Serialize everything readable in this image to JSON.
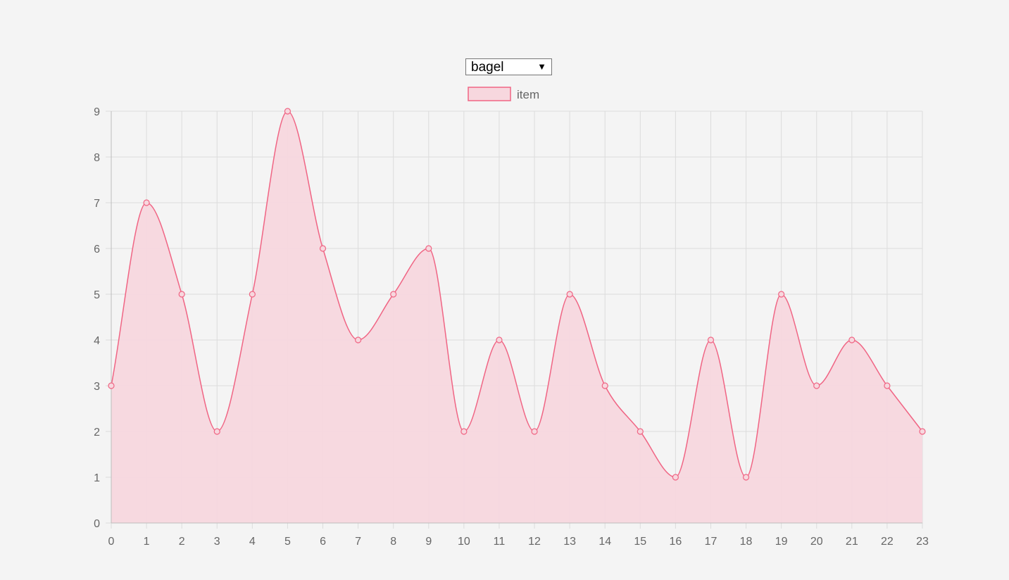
{
  "controls": {
    "dataset_select": {
      "selected": "bagel",
      "arrow_icon": "triangle-down-icon"
    }
  },
  "chart_data": {
    "type": "area",
    "x": [
      0,
      1,
      2,
      3,
      4,
      5,
      6,
      7,
      8,
      9,
      10,
      11,
      12,
      13,
      14,
      15,
      16,
      17,
      18,
      19,
      20,
      21,
      22,
      23
    ],
    "series": [
      {
        "name": "item",
        "values": [
          3,
          7,
          5,
          2,
          5,
          9,
          6,
          4,
          5,
          6,
          2,
          4,
          2,
          5,
          3,
          2,
          1,
          4,
          1,
          5,
          3,
          4,
          3,
          2
        ],
        "line_color": "#f06584",
        "fill_color": "#f7d7de"
      }
    ],
    "ylim": [
      0,
      9
    ],
    "yticks": [
      0,
      1,
      2,
      3,
      4,
      5,
      6,
      7,
      8,
      9
    ],
    "grid": true,
    "legend_position": "top-center",
    "curve": "smooth"
  }
}
